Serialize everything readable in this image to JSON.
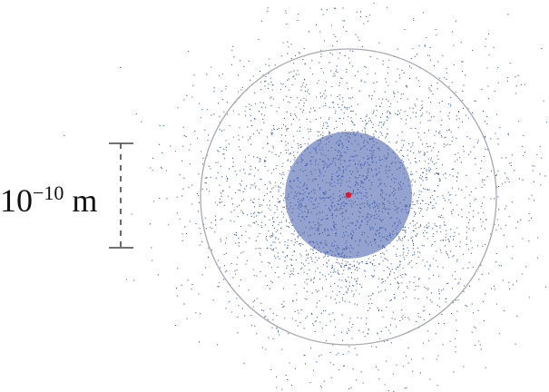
{
  "scale_bar": {
    "base": "10",
    "exponent": "−10",
    "unit": "m"
  },
  "colors": {
    "cloud": "#3a55a5",
    "nucleus": "#e0142a",
    "orbit_ring": "#a8a8b0",
    "scale_bar": "#444444",
    "background": "#ffffff"
  }
}
